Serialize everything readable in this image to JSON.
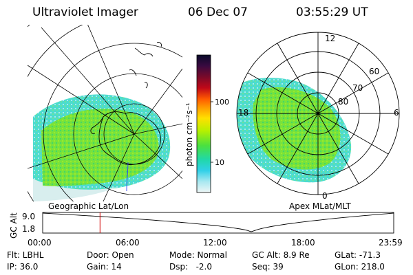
{
  "header": {
    "title": "Ultraviolet Imager",
    "date": "06 Dec 07",
    "time": "03:55:29 UT"
  },
  "geo_panel": {
    "caption": "Geographic Lat/Lon"
  },
  "mag_panel": {
    "caption": "Apex MLat/MLT",
    "mlt_labels": {
      "top": "12",
      "left": "18",
      "right": "6",
      "bottom": "0"
    },
    "lat_labels": [
      "60",
      "70",
      "80"
    ]
  },
  "colorbar": {
    "unit_label": "photon cm⁻²s⁻¹",
    "ticks": [
      "100",
      "10"
    ],
    "colors": [
      "#0a0a2a",
      "#2a0a3c",
      "#4a0a3a",
      "#7a0a2a",
      "#b0081a",
      "#e01010",
      "#ff5a00",
      "#ff9a00",
      "#ffe000",
      "#c8f000",
      "#7cec20",
      "#3ee050",
      "#20d8a0",
      "#30d0e0",
      "#a0e8f0",
      "#e8f4f4"
    ]
  },
  "altitude_plot": {
    "ylabel": "GC Alt",
    "y_ticks": [
      "9.0",
      "1.8"
    ],
    "x_ticks": [
      "00:00",
      "06:00",
      "12:00",
      "18:00",
      "23:59"
    ],
    "marker_time_hours": 3.92,
    "marker_color": "#d00000",
    "curve_min_time_hours": 14.3
  },
  "info": {
    "flt": "Flt: LBHL",
    "door": "Door: Open",
    "mode": "Mode: Normal",
    "gc_alt": "GC Alt: 8.9 Re",
    "glat": "GLat: -71.3",
    "ip": "IP: 36.0",
    "gain": "Gain: 14",
    "dsp": "Dsp:   -2.0",
    "seq": "Seq: 39",
    "glon": "GLon: 218.0"
  }
}
